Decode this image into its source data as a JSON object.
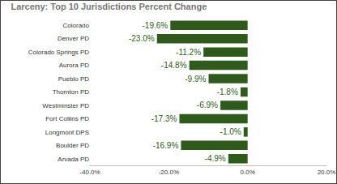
{
  "chart_data": {
    "type": "bar",
    "orientation": "horizontal",
    "title": "Larceny: Top 10 Jurisdictions Percent Change",
    "categories": [
      "Colorado",
      "Denver PD",
      "Colorado Springs PD",
      "Aurora PD",
      "Pueblo PD",
      "Thornton PD",
      "Westminster PD",
      "Fort Collins PD",
      "Longmont DPS",
      "Boulder PD",
      "Arvada PD"
    ],
    "values": [
      -19.6,
      -23.0,
      -11.2,
      -14.8,
      -9.9,
      -1.8,
      -6.9,
      -17.3,
      -1.0,
      -16.9,
      -4.9
    ],
    "value_labels": [
      "-19.6%",
      "-23.0%",
      "-11.2%",
      "-14.8%",
      "-9.9%",
      "-1.8%",
      "-6.9%",
      "-17.3%",
      "-1.0%",
      "-16.9%",
      "-4.9%"
    ],
    "data_labels": true,
    "color": "#2f5a1c",
    "xlim": [
      -40,
      20
    ],
    "xticks": [
      {
        "value": -40,
        "label": "-40.0%"
      },
      {
        "value": -20,
        "label": "-20.0%"
      },
      {
        "value": 0,
        "label": "0.0%"
      },
      {
        "value": 20,
        "label": "20.0%"
      }
    ],
    "grid": false
  }
}
